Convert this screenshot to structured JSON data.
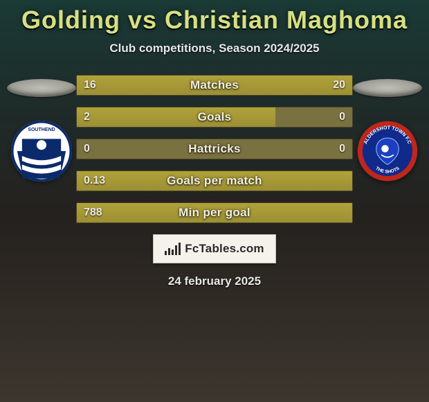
{
  "title": "Golding vs Christian Maghoma",
  "subtitle": "Club competitions, Season 2024/2025",
  "date": "24 february 2025",
  "brand": "FcTables.com",
  "colors": {
    "title": "#d6e082",
    "bar_fill": "#a89a36",
    "bar_bg": "#7a7140",
    "text": "#e8e8e8"
  },
  "rows": [
    {
      "label": "Matches",
      "left": "16",
      "right": "20",
      "left_pct": 44,
      "right_pct": 56
    },
    {
      "label": "Goals",
      "left": "2",
      "right": "0",
      "left_pct": 72,
      "right_pct": 0
    },
    {
      "label": "Hattricks",
      "left": "0",
      "right": "0",
      "left_pct": 0,
      "right_pct": 0
    },
    {
      "label": "Goals per match",
      "left": "0.13",
      "right": "",
      "left_pct": 100,
      "right_pct": 0
    },
    {
      "label": "Min per goal",
      "left": "788",
      "right": "",
      "left_pct": 100,
      "right_pct": 0
    }
  ],
  "crest_left": {
    "bg": "#ffffff",
    "primary": "#0b2a6b",
    "text": "SOUTHEND UNITED"
  },
  "crest_right": {
    "bg": "#102a8a",
    "ring": "#c1261c",
    "text_top": "ALDERSHOT TOWN",
    "text_bottom": "THE SHOTS"
  }
}
